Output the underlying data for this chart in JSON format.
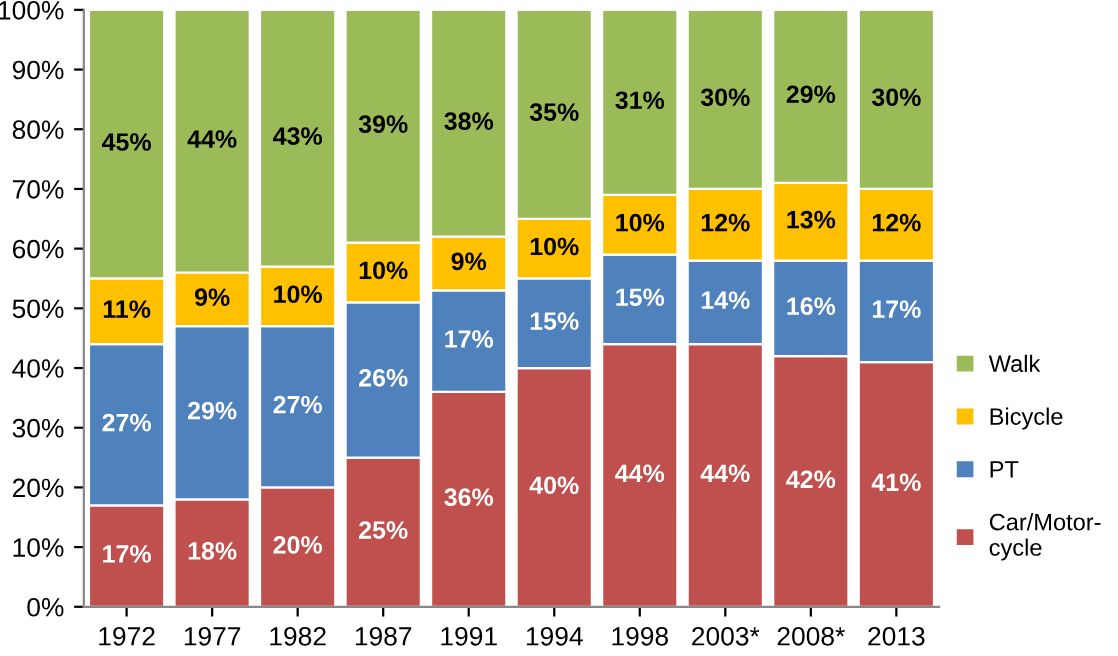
{
  "chart_data": {
    "type": "bar",
    "stacked": true,
    "categories": [
      "1972",
      "1977",
      "1982",
      "1987",
      "1991",
      "1994",
      "1998",
      "2003*",
      "2008*",
      "2013"
    ],
    "series": [
      {
        "name": "Car/Motor-\ncycle",
        "color": "#c0504d",
        "values": [
          17,
          18,
          20,
          25,
          36,
          40,
          44,
          44,
          42,
          41
        ],
        "value_labels": [
          "17%",
          "18%",
          "20%",
          "25%",
          "36%",
          "40%",
          "44%",
          "44%",
          "42%",
          "41%"
        ]
      },
      {
        "name": "PT",
        "color": "#4f81bd",
        "values": [
          27,
          29,
          27,
          26,
          17,
          15,
          15,
          14,
          16,
          17
        ],
        "value_labels": [
          "27%",
          "29%",
          "27%",
          "26%",
          "17%",
          "15%",
          "15%",
          "14%",
          "16%",
          "17%"
        ]
      },
      {
        "name": "Bicycle",
        "color": "#ffc000",
        "values": [
          11,
          9,
          10,
          10,
          9,
          10,
          10,
          12,
          13,
          12
        ],
        "value_labels": [
          "11%",
          "9%",
          "10%",
          "10%",
          "9%",
          "10%",
          "10%",
          "12%",
          "13%",
          "12%"
        ]
      },
      {
        "name": "Walk",
        "color": "#9bbb59",
        "values": [
          45,
          44,
          43,
          39,
          38,
          35,
          31,
          30,
          29,
          30
        ],
        "value_labels": [
          "45%",
          "44%",
          "43%",
          "39%",
          "38%",
          "35%",
          "31%",
          "30%",
          "29%",
          "30%"
        ]
      }
    ],
    "ylim": [
      0,
      100
    ],
    "yticks": [
      {
        "value": 0,
        "label": "0%"
      },
      {
        "value": 10,
        "label": "10%"
      },
      {
        "value": 20,
        "label": "20%"
      },
      {
        "value": 30,
        "label": "30%"
      },
      {
        "value": 40,
        "label": "40%"
      },
      {
        "value": 50,
        "label": "50%"
      },
      {
        "value": 60,
        "label": "60%"
      },
      {
        "value": 70,
        "label": "70%"
      },
      {
        "value": 80,
        "label": "80%"
      },
      {
        "value": 90,
        "label": "90%"
      },
      {
        "value": 100,
        "label": "100%"
      }
    ],
    "grid": false,
    "legend": "right"
  }
}
